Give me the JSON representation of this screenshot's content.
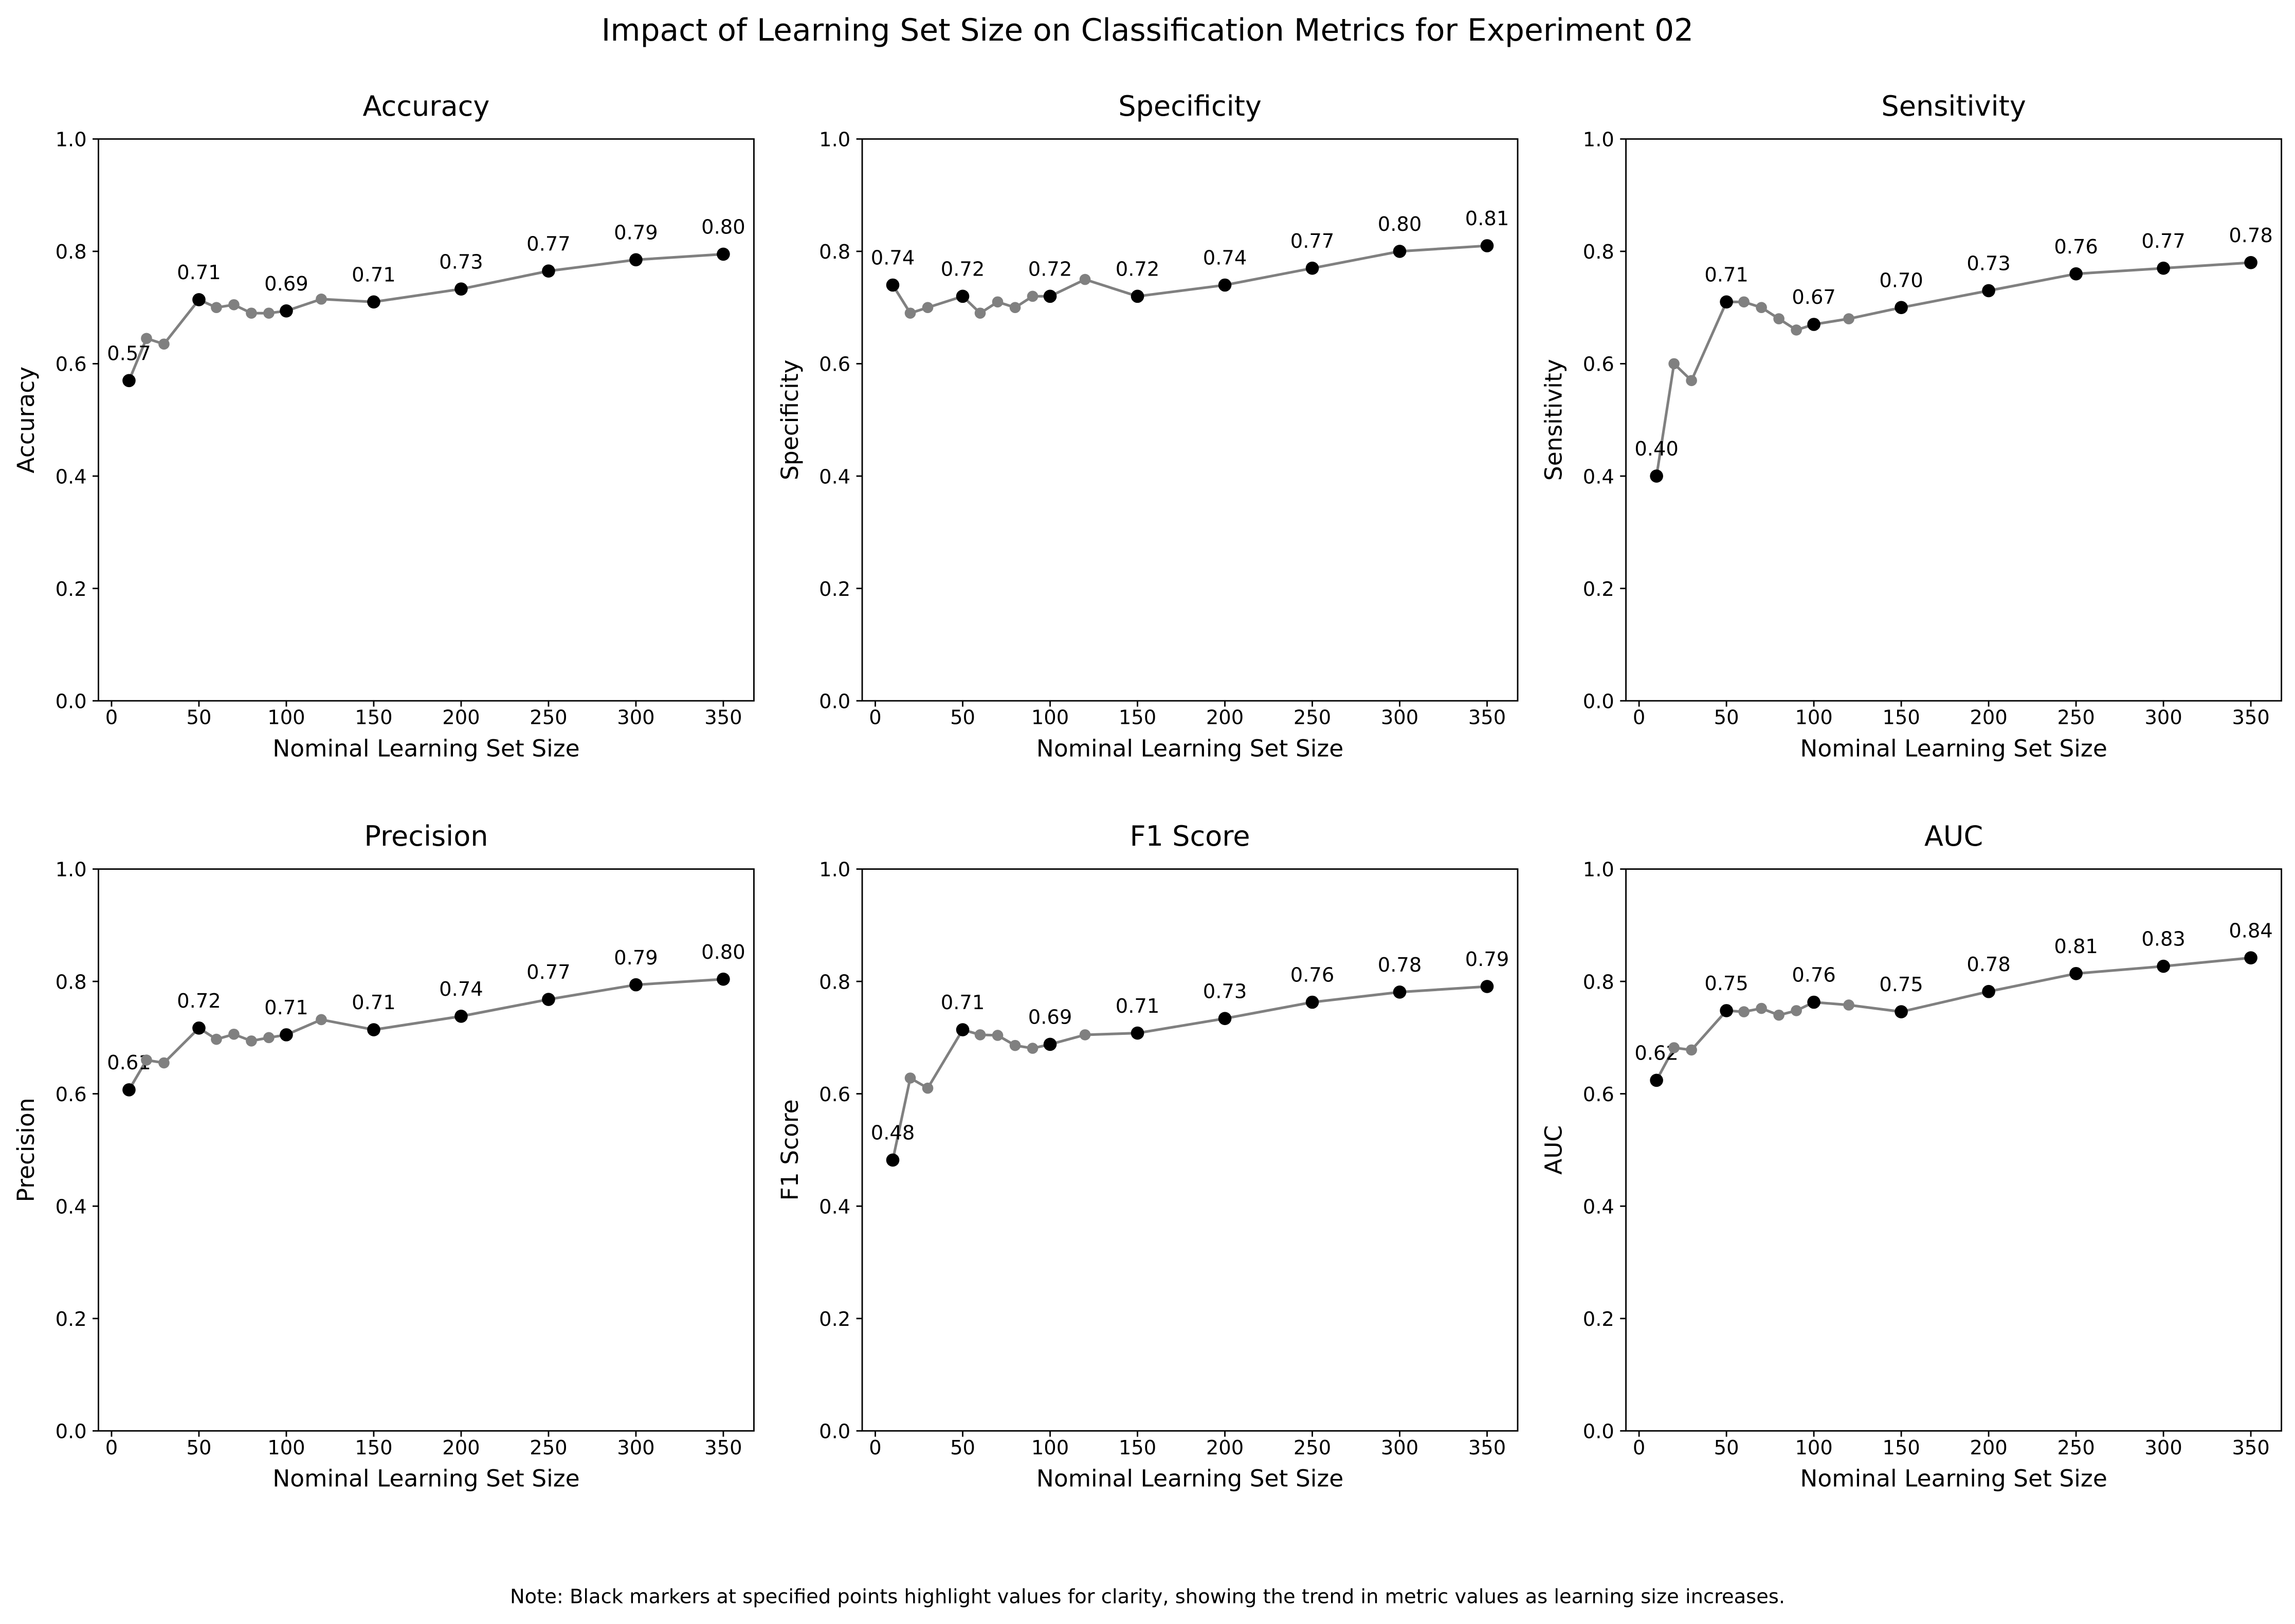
{
  "title": "Impact of Learning Set Size on Classification Metrics for Experiment 02",
  "note": "Note: Black markers at specified points highlight values for clarity, showing the trend in metric values as learning size increases.",
  "chart_data": [
    {
      "type": "line",
      "title": "Accuracy",
      "xlabel": "Nominal Learning Set Size",
      "ylabel": "Accuracy",
      "x": [
        10,
        20,
        30,
        50,
        60,
        70,
        80,
        90,
        100,
        120,
        150,
        200,
        250,
        300,
        350
      ],
      "values": [
        0.57,
        0.645,
        0.635,
        0.714,
        0.7,
        0.705,
        0.69,
        0.69,
        0.694,
        0.715,
        0.71,
        0.733,
        0.765,
        0.785,
        0.795
      ],
      "value_labels": [
        "0.57",
        null,
        null,
        "0.71",
        null,
        null,
        null,
        null,
        "0.69",
        null,
        "0.71",
        "0.73",
        "0.77",
        "0.79",
        "0.80"
      ],
      "color": "#808080",
      "highlight_color": "#000000",
      "xlim": [
        -7.5,
        367.5
      ],
      "ylim": [
        0,
        1
      ],
      "xticks": [
        0,
        50,
        100,
        150,
        200,
        250,
        300,
        350
      ],
      "yticks": [
        {
          "value": 0,
          "label": "0.0"
        },
        0.2,
        0.4,
        0.6,
        0.8,
        {
          "value": 1,
          "label": "1.0"
        }
      ]
    },
    {
      "type": "line",
      "title": "Specificity",
      "xlabel": "Nominal Learning Set Size",
      "ylabel": "Specificity",
      "x": [
        10,
        20,
        30,
        50,
        60,
        70,
        80,
        90,
        100,
        120,
        150,
        200,
        250,
        300,
        350
      ],
      "values": [
        0.74,
        0.69,
        0.7,
        0.72,
        0.69,
        0.71,
        0.7,
        0.72,
        0.72,
        0.75,
        0.72,
        0.74,
        0.77,
        0.8,
        0.81
      ],
      "value_labels": [
        "0.74",
        null,
        null,
        "0.72",
        null,
        null,
        null,
        null,
        "0.72",
        null,
        "0.72",
        "0.74",
        "0.77",
        "0.80",
        "0.81"
      ],
      "color": "#808080",
      "highlight_color": "#000000",
      "xlim": [
        -7.5,
        367.5
      ],
      "ylim": [
        0,
        1
      ],
      "xticks": [
        0,
        50,
        100,
        150,
        200,
        250,
        300,
        350
      ],
      "yticks": [
        {
          "value": 0,
          "label": "0.0"
        },
        0.2,
        0.4,
        0.6,
        0.8,
        {
          "value": 1,
          "label": "1.0"
        }
      ]
    },
    {
      "type": "line",
      "title": "Sensitivity",
      "xlabel": "Nominal Learning Set Size",
      "ylabel": "Sensitivity",
      "x": [
        10,
        20,
        30,
        50,
        60,
        70,
        80,
        90,
        100,
        120,
        150,
        200,
        250,
        300,
        350
      ],
      "values": [
        0.4,
        0.6,
        0.57,
        0.71,
        0.71,
        0.7,
        0.68,
        0.66,
        0.67,
        0.68,
        0.7,
        0.73,
        0.76,
        0.77,
        0.78
      ],
      "value_labels": [
        "0.40",
        null,
        null,
        "0.71",
        null,
        null,
        null,
        null,
        "0.67",
        null,
        "0.70",
        "0.73",
        "0.76",
        "0.77",
        "0.78"
      ],
      "color": "#808080",
      "highlight_color": "#000000",
      "xlim": [
        -7.5,
        367.5
      ],
      "ylim": [
        0,
        1
      ],
      "xticks": [
        0,
        50,
        100,
        150,
        200,
        250,
        300,
        350
      ],
      "yticks": [
        {
          "value": 0,
          "label": "0.0"
        },
        0.2,
        0.4,
        0.6,
        0.8,
        {
          "value": 1,
          "label": "1.0"
        }
      ]
    },
    {
      "type": "line",
      "title": "Precision",
      "xlabel": "Nominal Learning Set Size",
      "ylabel": "Precision",
      "x": [
        10,
        20,
        30,
        50,
        60,
        70,
        80,
        90,
        100,
        120,
        150,
        200,
        250,
        300,
        350
      ],
      "values": [
        0.607,
        0.66,
        0.655,
        0.717,
        0.697,
        0.706,
        0.694,
        0.7,
        0.705,
        0.732,
        0.714,
        0.738,
        0.768,
        0.794,
        0.804
      ],
      "value_labels": [
        "0.61",
        null,
        null,
        "0.72",
        null,
        null,
        null,
        null,
        "0.71",
        null,
        "0.71",
        "0.74",
        "0.77",
        "0.79",
        "0.80"
      ],
      "color": "#808080",
      "highlight_color": "#000000",
      "xlim": [
        -7.5,
        367.5
      ],
      "ylim": [
        0,
        1
      ],
      "xticks": [
        0,
        50,
        100,
        150,
        200,
        250,
        300,
        350
      ],
      "yticks": [
        {
          "value": 0,
          "label": "0.0"
        },
        0.2,
        0.4,
        0.6,
        0.8,
        {
          "value": 1,
          "label": "1.0"
        }
      ]
    },
    {
      "type": "line",
      "title": "F1 Score",
      "xlabel": "Nominal Learning Set Size",
      "ylabel": "F1 Score",
      "x": [
        10,
        20,
        30,
        50,
        60,
        70,
        80,
        90,
        100,
        120,
        150,
        200,
        250,
        300,
        350
      ],
      "values": [
        0.482,
        0.628,
        0.61,
        0.714,
        0.705,
        0.704,
        0.686,
        0.681,
        0.688,
        0.705,
        0.708,
        0.734,
        0.763,
        0.781,
        0.791
      ],
      "value_labels": [
        "0.48",
        null,
        null,
        "0.71",
        null,
        null,
        null,
        null,
        "0.69",
        null,
        "0.71",
        "0.73",
        "0.76",
        "0.78",
        "0.79"
      ],
      "color": "#808080",
      "highlight_color": "#000000",
      "xlim": [
        -7.5,
        367.5
      ],
      "ylim": [
        0,
        1
      ],
      "xticks": [
        0,
        50,
        100,
        150,
        200,
        250,
        300,
        350
      ],
      "yticks": [
        {
          "value": 0,
          "label": "0.0"
        },
        0.2,
        0.4,
        0.6,
        0.8,
        {
          "value": 1,
          "label": "1.0"
        }
      ]
    },
    {
      "type": "line",
      "title": "AUC",
      "xlabel": "Nominal Learning Set Size",
      "ylabel": "AUC",
      "x": [
        10,
        20,
        30,
        50,
        60,
        70,
        80,
        90,
        100,
        120,
        150,
        200,
        250,
        300,
        350
      ],
      "values": [
        0.624,
        0.682,
        0.678,
        0.748,
        0.746,
        0.752,
        0.74,
        0.748,
        0.763,
        0.758,
        0.746,
        0.782,
        0.814,
        0.827,
        0.842
      ],
      "value_labels": [
        "0.62",
        null,
        null,
        "0.75",
        null,
        null,
        null,
        null,
        "0.76",
        null,
        "0.75",
        "0.78",
        "0.81",
        "0.83",
        "0.84"
      ],
      "color": "#808080",
      "highlight_color": "#000000",
      "xlim": [
        -7.5,
        367.5
      ],
      "ylim": [
        0,
        1
      ],
      "xticks": [
        0,
        50,
        100,
        150,
        200,
        250,
        300,
        350
      ],
      "yticks": [
        {
          "value": 0,
          "label": "0.0"
        },
        0.2,
        0.4,
        0.6,
        0.8,
        {
          "value": 1,
          "label": "1.0"
        }
      ]
    }
  ]
}
